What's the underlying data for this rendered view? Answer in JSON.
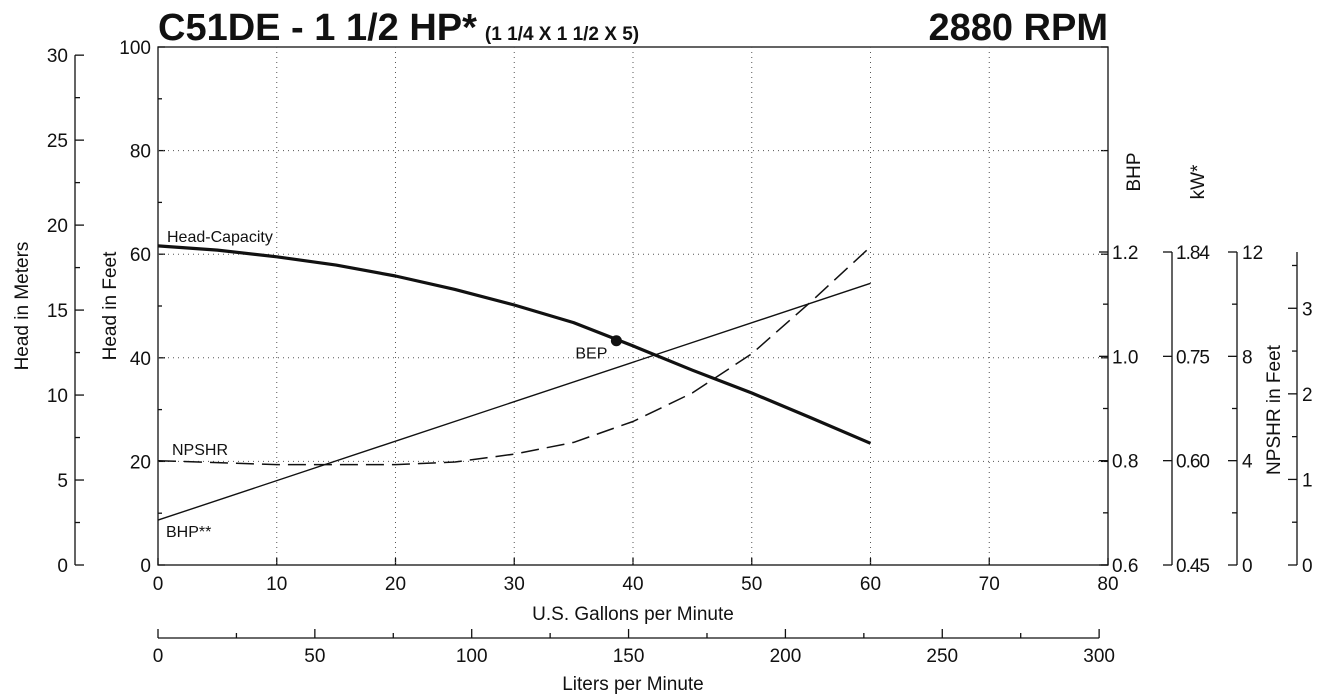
{
  "chart_data": {
    "type": "line",
    "title": "C51DE - 1 1/2 HP*",
    "subtitle": "(1 1/4 X 1 1/2 X 5)",
    "speed_label": "2880 RPM",
    "x_label": "U.S. Gallons per Minute",
    "y_label": "Head in Feet",
    "xlim": [
      0,
      80
    ],
    "xticks": [
      0,
      10,
      20,
      30,
      40,
      50,
      60,
      70,
      80
    ],
    "ylim": [
      0,
      100
    ],
    "yticks": [
      0,
      20,
      40,
      60,
      80,
      100
    ],
    "y_minor_ticks": [
      10,
      30,
      50,
      70,
      90
    ],
    "grid": true,
    "meters_axis": {
      "label": "Head in Meters",
      "lim": [
        0,
        30.48
      ],
      "ticks": [
        0,
        5,
        10,
        15,
        20,
        25,
        30
      ],
      "minor_ticks": [
        2.5,
        7.5,
        12.5,
        17.5,
        22.5,
        27.5
      ]
    },
    "liters_axis": {
      "label": "Liters per Minute",
      "lim": [
        0,
        302.83
      ],
      "ticks": [
        0,
        50,
        100,
        150,
        200,
        250,
        300
      ],
      "minor_ticks": [
        25,
        75,
        125,
        175,
        225,
        275
      ]
    },
    "bhp_axis": {
      "label": "BHP",
      "lim": [
        0.6,
        1.2
      ],
      "ticks": [
        0.6,
        0.8,
        {
          "value": 1,
          "label": "1.0"
        },
        1.2
      ],
      "minor_ticks": [
        0.7,
        0.9,
        1.1
      ]
    },
    "kw_axis": {
      "label": "kW*",
      "tick_labels": [
        "0.45",
        "0.60",
        "0.75",
        "1.84"
      ]
    },
    "npshr_axis": {
      "label": "NPSHR in Feet",
      "lim": [
        0,
        12
      ],
      "ticks": [
        0,
        4,
        8,
        12
      ],
      "minor_ticks": [
        2,
        6,
        10
      ]
    },
    "npshr_m_axis": {
      "lim": [
        0,
        3.6576
      ],
      "ticks": [
        0,
        1,
        2,
        3
      ],
      "minor_ticks": [
        0.5,
        1.5,
        2.5,
        3.5
      ]
    },
    "series": [
      {
        "name": "Head-Capacity",
        "color": "#111111",
        "axis": "y",
        "style": "bold",
        "x": [
          0,
          5,
          10,
          15,
          20,
          25,
          30,
          35,
          40,
          45,
          50,
          55,
          60
        ],
        "values": [
          61.6,
          60.8,
          59.5,
          57.9,
          55.8,
          53.2,
          50.2,
          46.8,
          42.3,
          37.6,
          33.2,
          28.4,
          23.5
        ]
      },
      {
        "name": "NPSHR",
        "color": "#111111",
        "axis": "npshr",
        "style": "dashed",
        "x": [
          0,
          10,
          20,
          25,
          30,
          35,
          40,
          45,
          50,
          55,
          60
        ],
        "values": [
          4.0,
          3.85,
          3.85,
          3.95,
          4.25,
          4.7,
          5.5,
          6.6,
          8.1,
          10.1,
          12.2
        ]
      },
      {
        "name": "BHP**",
        "color": "#111111",
        "axis": "bhp",
        "style": "thin",
        "x": [
          0,
          60
        ],
        "values": [
          0.686,
          1.14
        ]
      }
    ],
    "bep": {
      "label": "BEP",
      "x": 38.6,
      "y": 43.3
    }
  }
}
